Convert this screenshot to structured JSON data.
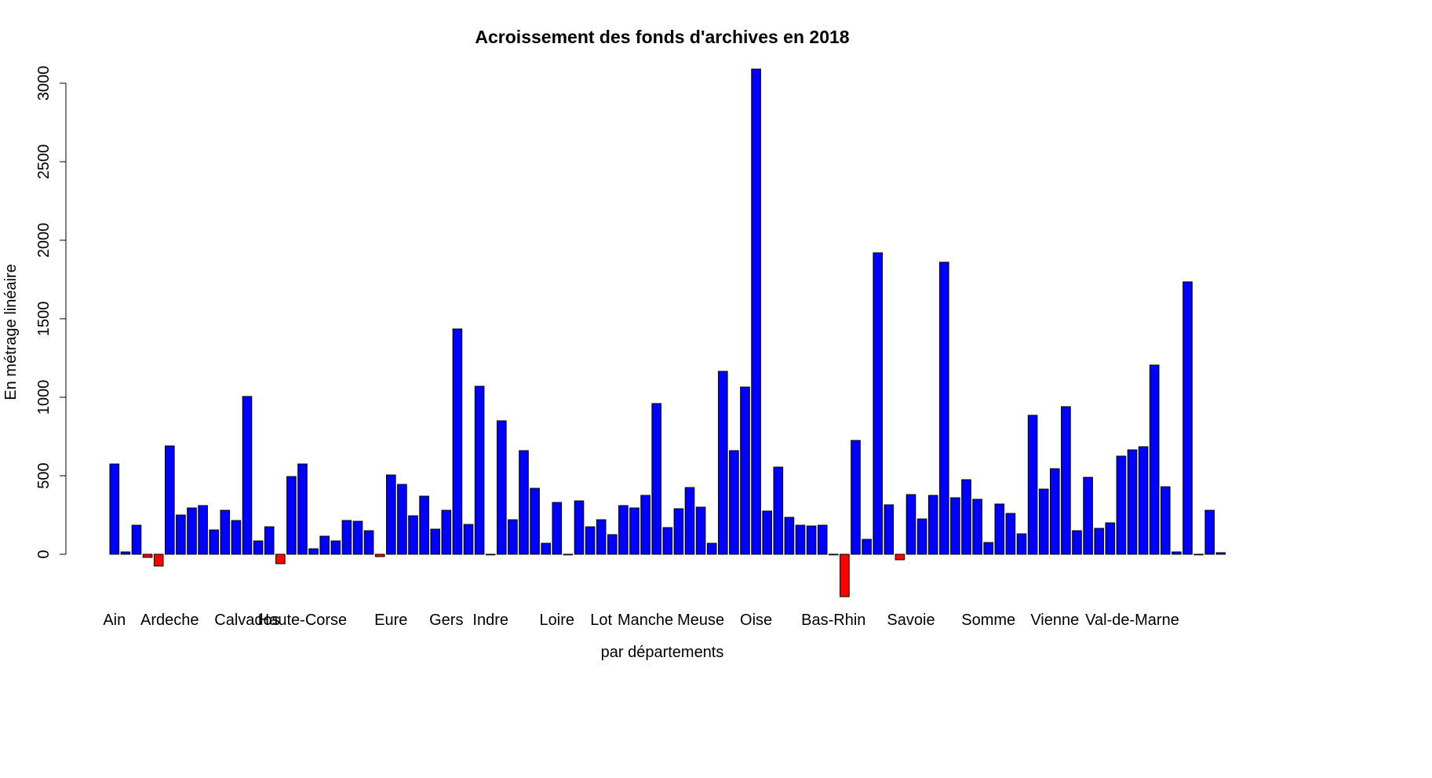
{
  "chart_data": {
    "type": "bar",
    "title": "Acroissement des fonds d'archives en 2018",
    "xlabel": "par départements",
    "ylabel": "En métrage linéaire",
    "ylim": [
      -300,
      3100
    ],
    "yticks": [
      0,
      500,
      1000,
      1500,
      2000,
      2500,
      3000
    ],
    "grid": false,
    "legend": "none",
    "colors": {
      "positive": "#0000ff",
      "negative": "#ff0000",
      "border": "#000000"
    },
    "visible_category_labels": [
      "Ain",
      "Ardeche",
      "Calvados",
      "Haute-Corse",
      "Eure",
      "Gers",
      "Indre",
      "Loire",
      "Lot",
      "Manche",
      "Meuse",
      "Oise",
      "Bas-Rhin",
      "Savoie",
      "Somme",
      "Vienne",
      "Val-de-Marne"
    ],
    "label_bar_index": [
      0,
      5,
      12,
      17,
      25,
      30,
      34,
      40,
      44,
      48,
      53,
      58,
      65,
      72,
      79,
      85,
      92
    ],
    "values": [
      575,
      15,
      185,
      -20,
      -75,
      690,
      250,
      295,
      310,
      155,
      280,
      215,
      1005,
      85,
      175,
      -60,
      495,
      575,
      35,
      115,
      85,
      215,
      210,
      150,
      -15,
      505,
      445,
      245,
      370,
      160,
      280,
      1435,
      190,
      1070,
      0,
      850,
      220,
      660,
      420,
      70,
      330,
      0,
      340,
      175,
      220,
      125,
      310,
      295,
      375,
      960,
      170,
      290,
      425,
      300,
      70,
      1165,
      660,
      1065,
      3090,
      275,
      555,
      235,
      185,
      180,
      185,
      0,
      -270,
      725,
      95,
      1920,
      315,
      -35,
      380,
      225,
      375,
      1860,
      360,
      475,
      350,
      75,
      320,
      260,
      130,
      885,
      415,
      545,
      940,
      150,
      490,
      165,
      200,
      625,
      665,
      685,
      1205,
      430,
      15,
      1735,
      0,
      280,
      10
    ]
  }
}
